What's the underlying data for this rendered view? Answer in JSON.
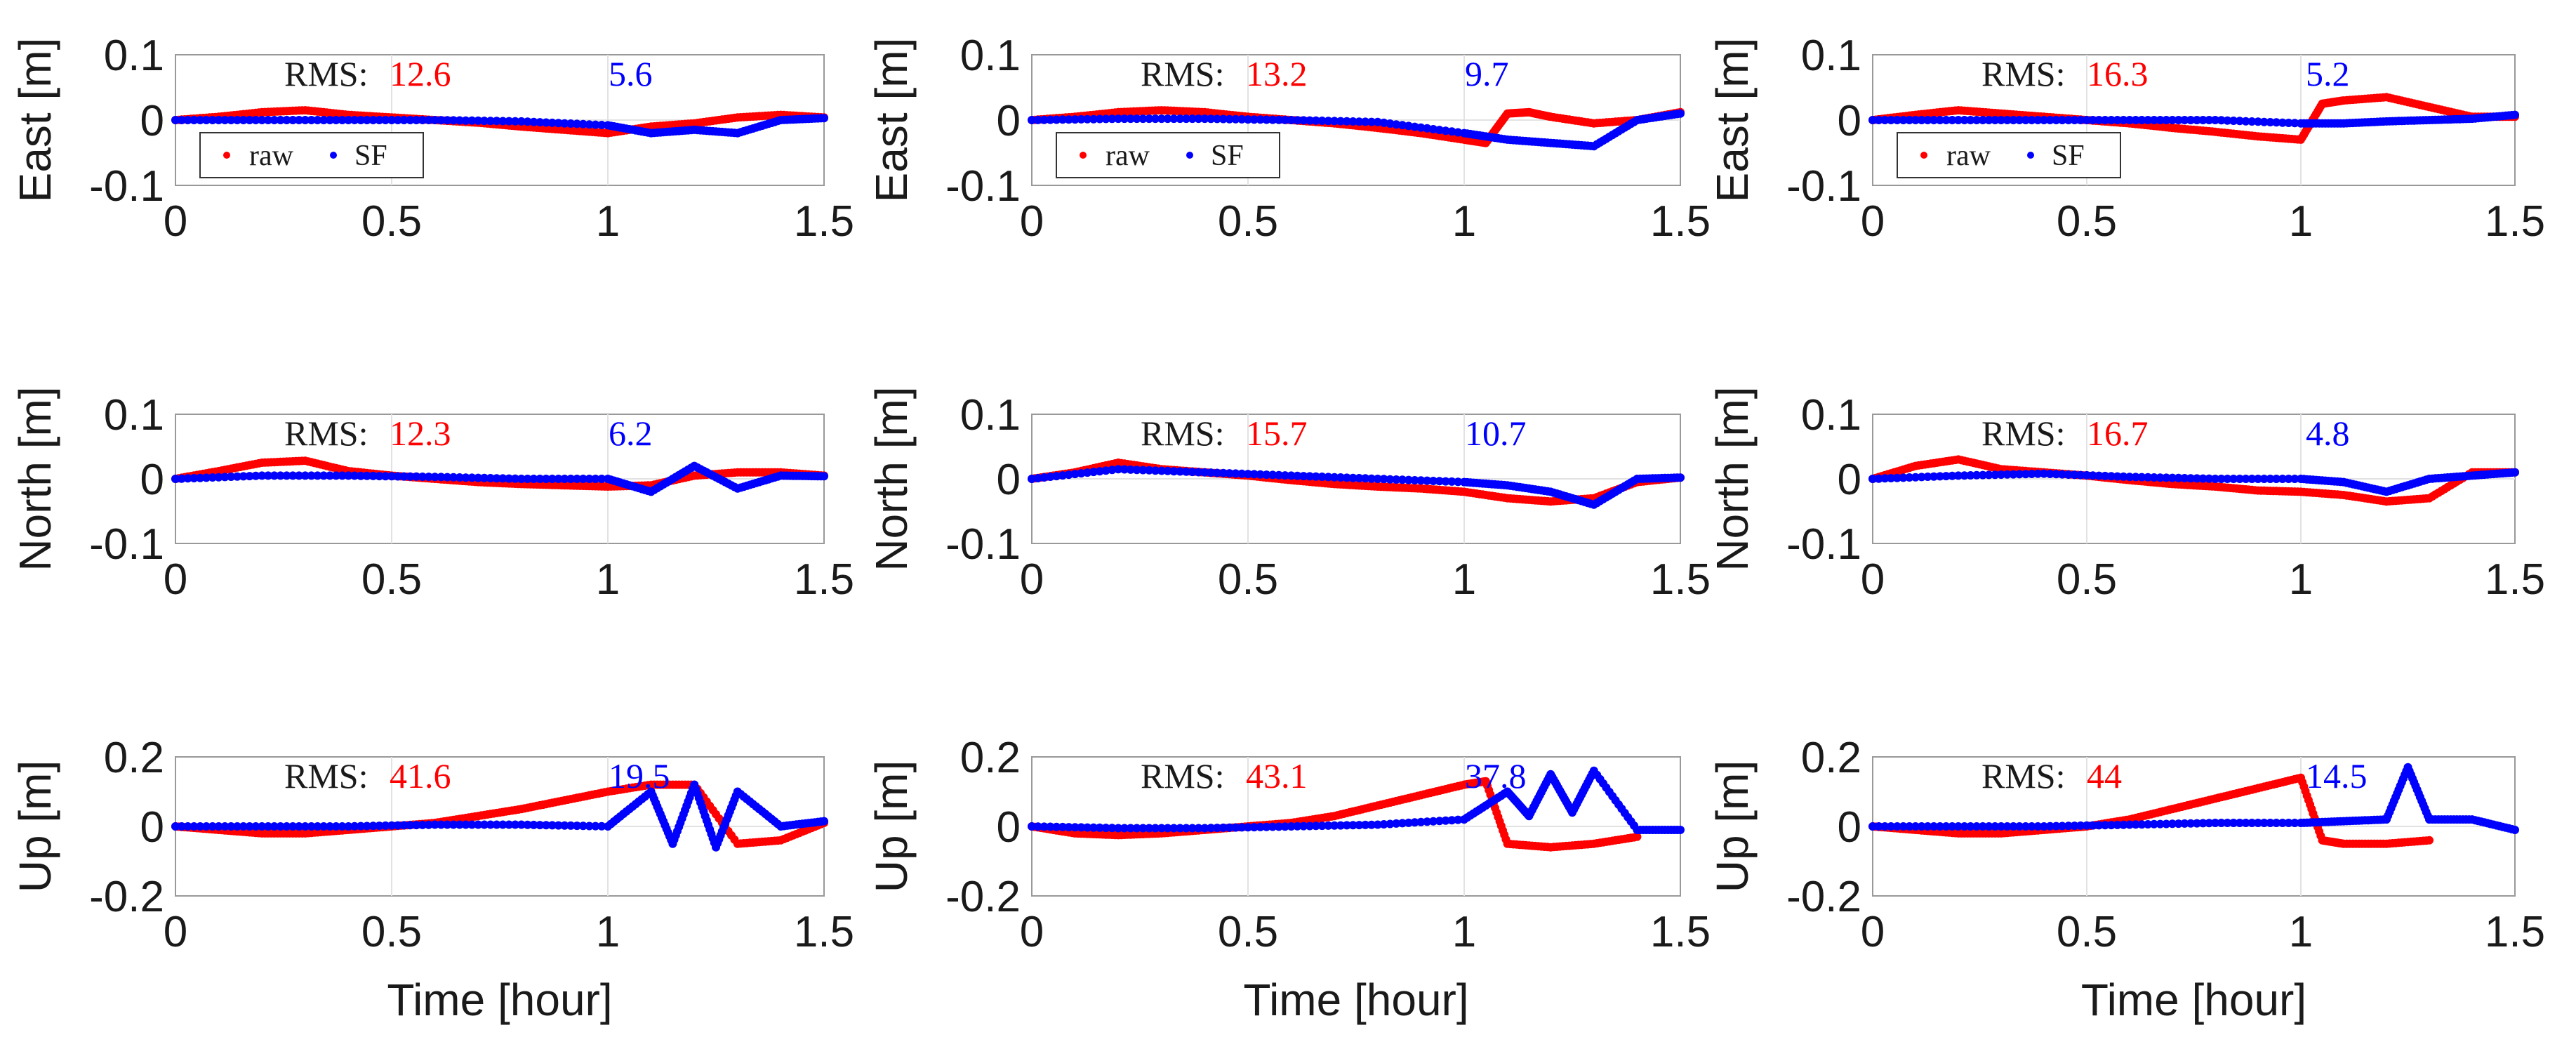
{
  "colors": {
    "raw": "#ff0000",
    "sf": "#0000ff",
    "text": "#1a1a1a",
    "grid": "#e2e2e2",
    "axis": "#999999"
  },
  "legend": {
    "raw_label": "raw",
    "sf_label": "SF"
  },
  "rms_prefix": "RMS:",
  "xlabel": "Time [hour]",
  "chart_data": [
    {
      "id": "p11",
      "type": "scatter",
      "ylabel": "East [m]",
      "xlim": [
        0,
        1.5
      ],
      "ylim": [
        -0.1,
        0.1
      ],
      "xticks": [
        "0",
        "0.5",
        "1",
        "1.5"
      ],
      "yticks": [
        "0.1",
        "0",
        "-0.1"
      ],
      "rms": {
        "raw": "12.6",
        "sf": "5.6"
      },
      "legend": true,
      "xlabel": false,
      "series": [
        {
          "name": "raw",
          "x": [
            0,
            0.1,
            0.2,
            0.3,
            0.4,
            0.5,
            0.6,
            0.7,
            0.8,
            0.9,
            1.0,
            1.1,
            1.2,
            1.3,
            1.4,
            1.5
          ],
          "y": [
            0,
            0.005,
            0.012,
            0.015,
            0.008,
            0.004,
            0,
            -0.004,
            -0.01,
            -0.015,
            -0.02,
            -0.01,
            -0.005,
            0.004,
            0.008,
            0.004
          ]
        },
        {
          "name": "SF",
          "x": [
            0,
            0.2,
            0.4,
            0.6,
            0.8,
            1.0,
            1.1,
            1.2,
            1.3,
            1.4,
            1.5
          ],
          "y": [
            0,
            0,
            0,
            0,
            -0.002,
            -0.008,
            -0.02,
            -0.015,
            -0.02,
            0,
            0.003
          ]
        }
      ]
    },
    {
      "id": "p12",
      "type": "scatter",
      "ylabel": "East [m]",
      "xlim": [
        0,
        1.5
      ],
      "ylim": [
        -0.1,
        0.1
      ],
      "xticks": [
        "0",
        "0.5",
        "1",
        "1.5"
      ],
      "yticks": [
        "0.1",
        "0",
        "-0.1"
      ],
      "rms": {
        "raw": "13.2",
        "sf": "9.7"
      },
      "legend": true,
      "xlabel": false,
      "series": [
        {
          "name": "raw",
          "x": [
            0,
            0.1,
            0.2,
            0.3,
            0.4,
            0.5,
            0.6,
            0.7,
            0.8,
            0.9,
            1.0,
            1.05,
            1.1,
            1.15,
            1.2,
            1.3,
            1.4,
            1.5
          ],
          "y": [
            0,
            0.005,
            0.012,
            0.015,
            0.012,
            0.005,
            0,
            -0.005,
            -0.012,
            -0.02,
            -0.03,
            -0.035,
            0.01,
            0.012,
            0.005,
            -0.005,
            0,
            0.012
          ]
        },
        {
          "name": "SF",
          "x": [
            0,
            0.2,
            0.4,
            0.6,
            0.8,
            1.0,
            1.1,
            1.2,
            1.3,
            1.4,
            1.5
          ],
          "y": [
            0,
            0.002,
            0.002,
            0,
            -0.003,
            -0.02,
            -0.03,
            -0.035,
            -0.04,
            0,
            0.01
          ]
        }
      ]
    },
    {
      "id": "p13",
      "type": "scatter",
      "ylabel": "East [m]",
      "xlim": [
        0,
        1.5
      ],
      "ylim": [
        -0.1,
        0.1
      ],
      "xticks": [
        "0",
        "0.5",
        "1",
        "1.5"
      ],
      "yticks": [
        "0.1",
        "0",
        "-0.1"
      ],
      "rms": {
        "raw": "16.3",
        "sf": "5.2"
      },
      "legend": true,
      "xlabel": false,
      "series": [
        {
          "name": "raw",
          "x": [
            0,
            0.1,
            0.2,
            0.3,
            0.4,
            0.5,
            0.6,
            0.7,
            0.8,
            0.9,
            1.0,
            1.05,
            1.1,
            1.2,
            1.3,
            1.4,
            1.5
          ],
          "y": [
            0,
            0.008,
            0.015,
            0.01,
            0.005,
            0,
            -0.005,
            -0.012,
            -0.018,
            -0.025,
            -0.03,
            0.025,
            0.03,
            0.035,
            0.02,
            0.005,
            0.005
          ]
        },
        {
          "name": "SF",
          "x": [
            0,
            0.2,
            0.4,
            0.6,
            0.8,
            1.0,
            1.1,
            1.2,
            1.3,
            1.4,
            1.5
          ],
          "y": [
            0,
            0,
            0,
            0,
            0,
            -0.005,
            -0.005,
            -0.002,
            0,
            0.002,
            0.008
          ]
        }
      ]
    },
    {
      "id": "p21",
      "type": "scatter",
      "ylabel": "North [m]",
      "xlim": [
        0,
        1.5
      ],
      "ylim": [
        -0.1,
        0.1
      ],
      "xticks": [
        "0",
        "0.5",
        "1",
        "1.5"
      ],
      "yticks": [
        "0.1",
        "0",
        "-0.1"
      ],
      "rms": {
        "raw": "12.3",
        "sf": "6.2"
      },
      "legend": false,
      "xlabel": false,
      "series": [
        {
          "name": "raw",
          "x": [
            0,
            0.1,
            0.2,
            0.3,
            0.4,
            0.5,
            0.6,
            0.7,
            0.8,
            0.9,
            1.0,
            1.1,
            1.2,
            1.3,
            1.4,
            1.5
          ],
          "y": [
            0,
            0.012,
            0.025,
            0.028,
            0.012,
            0.005,
            0,
            -0.005,
            -0.008,
            -0.01,
            -0.012,
            -0.01,
            0.005,
            0.01,
            0.01,
            0.005
          ]
        },
        {
          "name": "SF",
          "x": [
            0,
            0.2,
            0.4,
            0.6,
            0.8,
            1.0,
            1.1,
            1.2,
            1.3,
            1.4,
            1.5
          ],
          "y": [
            0,
            0.005,
            0.005,
            0.003,
            0,
            0,
            -0.02,
            0.02,
            -0.015,
            0.005,
            0.004
          ]
        }
      ]
    },
    {
      "id": "p22",
      "type": "scatter",
      "ylabel": "North [m]",
      "xlim": [
        0,
        1.5
      ],
      "ylim": [
        -0.1,
        0.1
      ],
      "xticks": [
        "0",
        "0.5",
        "1",
        "1.5"
      ],
      "yticks": [
        "0.1",
        "0",
        "-0.1"
      ],
      "rms": {
        "raw": "15.7",
        "sf": "10.7"
      },
      "legend": false,
      "xlabel": false,
      "series": [
        {
          "name": "raw",
          "x": [
            0,
            0.1,
            0.2,
            0.3,
            0.4,
            0.5,
            0.6,
            0.7,
            0.8,
            0.9,
            1.0,
            1.1,
            1.2,
            1.3,
            1.4,
            1.5
          ],
          "y": [
            0,
            0.01,
            0.025,
            0.015,
            0.01,
            0.005,
            -0.002,
            -0.008,
            -0.012,
            -0.015,
            -0.02,
            -0.03,
            -0.035,
            -0.03,
            -0.005,
            0.002
          ]
        },
        {
          "name": "SF",
          "x": [
            0,
            0.2,
            0.4,
            0.6,
            0.8,
            1.0,
            1.1,
            1.2,
            1.3,
            1.4,
            1.5
          ],
          "y": [
            0,
            0.015,
            0.01,
            0.005,
            0,
            -0.005,
            -0.01,
            -0.02,
            -0.04,
            0,
            0.002
          ]
        }
      ]
    },
    {
      "id": "p23",
      "type": "scatter",
      "ylabel": "North [m]",
      "xlim": [
        0,
        1.5
      ],
      "ylim": [
        -0.1,
        0.1
      ],
      "xticks": [
        "0",
        "0.5",
        "1",
        "1.5"
      ],
      "yticks": [
        "0.1",
        "0",
        "-0.1"
      ],
      "rms": {
        "raw": "16.7",
        "sf": "4.8"
      },
      "legend": false,
      "xlabel": false,
      "series": [
        {
          "name": "raw",
          "x": [
            0,
            0.1,
            0.2,
            0.3,
            0.4,
            0.5,
            0.6,
            0.7,
            0.8,
            0.9,
            1.0,
            1.1,
            1.2,
            1.3,
            1.4,
            1.5
          ],
          "y": [
            0,
            0.02,
            0.03,
            0.015,
            0.01,
            0.005,
            -0.002,
            -0.008,
            -0.012,
            -0.018,
            -0.02,
            -0.025,
            -0.035,
            -0.03,
            0.01,
            0.01
          ]
        },
        {
          "name": "SF",
          "x": [
            0,
            0.2,
            0.4,
            0.6,
            0.8,
            1.0,
            1.1,
            1.2,
            1.3,
            1.4,
            1.5
          ],
          "y": [
            0,
            0.005,
            0.008,
            0.003,
            0,
            0,
            -0.005,
            -0.02,
            0,
            0.005,
            0.01
          ]
        }
      ]
    },
    {
      "id": "p31",
      "type": "scatter",
      "ylabel": "Up [m]",
      "xlim": [
        0,
        1.5
      ],
      "ylim": [
        -0.2,
        0.2
      ],
      "xticks": [
        "0",
        "0.5",
        "1",
        "1.5"
      ],
      "yticks": [
        "0.2",
        "0",
        "-0.2"
      ],
      "rms": {
        "raw": "41.6",
        "sf": "19.5"
      },
      "legend": false,
      "xlabel": true,
      "series": [
        {
          "name": "raw",
          "x": [
            0,
            0.1,
            0.2,
            0.3,
            0.4,
            0.5,
            0.6,
            0.7,
            0.8,
            0.9,
            1.0,
            1.1,
            1.2,
            1.3,
            1.4,
            1.5
          ],
          "y": [
            0,
            -0.01,
            -0.02,
            -0.02,
            -0.01,
            0,
            0.01,
            0.03,
            0.05,
            0.075,
            0.1,
            0.12,
            0.12,
            -0.05,
            -0.04,
            0.01
          ]
        },
        {
          "name": "SF",
          "x": [
            0,
            0.2,
            0.4,
            0.6,
            0.8,
            1.0,
            1.1,
            1.15,
            1.2,
            1.25,
            1.3,
            1.4,
            1.5
          ],
          "y": [
            0,
            0,
            0,
            0.005,
            0.005,
            0,
            0.1,
            -0.05,
            0.12,
            -0.06,
            0.1,
            0,
            0.015
          ]
        }
      ]
    },
    {
      "id": "p32",
      "type": "scatter",
      "ylabel": "Up [m]",
      "xlim": [
        0,
        1.5
      ],
      "ylim": [
        -0.2,
        0.2
      ],
      "xticks": [
        "0",
        "0.5",
        "1",
        "1.5"
      ],
      "yticks": [
        "0.2",
        "0",
        "-0.2"
      ],
      "rms": {
        "raw": "43.1",
        "sf": "37.8"
      },
      "legend": false,
      "xlabel": true,
      "series": [
        {
          "name": "raw",
          "x": [
            0,
            0.1,
            0.2,
            0.3,
            0.4,
            0.5,
            0.6,
            0.7,
            0.8,
            0.9,
            1.0,
            1.05,
            1.1,
            1.2,
            1.3,
            1.4
          ],
          "y": [
            0,
            -0.02,
            -0.025,
            -0.02,
            -0.01,
            0,
            0.01,
            0.03,
            0.06,
            0.09,
            0.12,
            0.13,
            -0.05,
            -0.06,
            -0.05,
            -0.03
          ]
        },
        {
          "name": "SF",
          "x": [
            0,
            0.2,
            0.4,
            0.6,
            0.8,
            1.0,
            1.1,
            1.15,
            1.2,
            1.25,
            1.3,
            1.4,
            1.5
          ],
          "y": [
            0,
            -0.005,
            -0.005,
            0,
            0.005,
            0.02,
            0.1,
            0.03,
            0.15,
            0.04,
            0.16,
            -0.01,
            -0.01
          ]
        }
      ]
    },
    {
      "id": "p33",
      "type": "scatter",
      "ylabel": "Up [m]",
      "xlim": [
        0,
        1.5
      ],
      "ylim": [
        -0.2,
        0.2
      ],
      "xticks": [
        "0",
        "0.5",
        "1",
        "1.5"
      ],
      "yticks": [
        "0.2",
        "0",
        "-0.2"
      ],
      "rms": {
        "raw": "44",
        "sf": "14.5"
      },
      "legend": false,
      "xlabel": true,
      "series": [
        {
          "name": "raw",
          "x": [
            0,
            0.1,
            0.2,
            0.3,
            0.4,
            0.5,
            0.6,
            0.7,
            0.8,
            0.9,
            1.0,
            1.05,
            1.1,
            1.2,
            1.3
          ],
          "y": [
            0,
            -0.01,
            -0.02,
            -0.02,
            -0.01,
            0,
            0.02,
            0.05,
            0.08,
            0.11,
            0.14,
            -0.04,
            -0.05,
            -0.05,
            -0.04
          ]
        },
        {
          "name": "SF",
          "x": [
            0,
            0.2,
            0.4,
            0.6,
            0.8,
            1.0,
            1.1,
            1.2,
            1.25,
            1.3,
            1.4,
            1.5
          ],
          "y": [
            0,
            0,
            0,
            0.005,
            0.01,
            0.01,
            0.015,
            0.02,
            0.17,
            0.02,
            0.02,
            -0.01
          ]
        }
      ]
    }
  ]
}
